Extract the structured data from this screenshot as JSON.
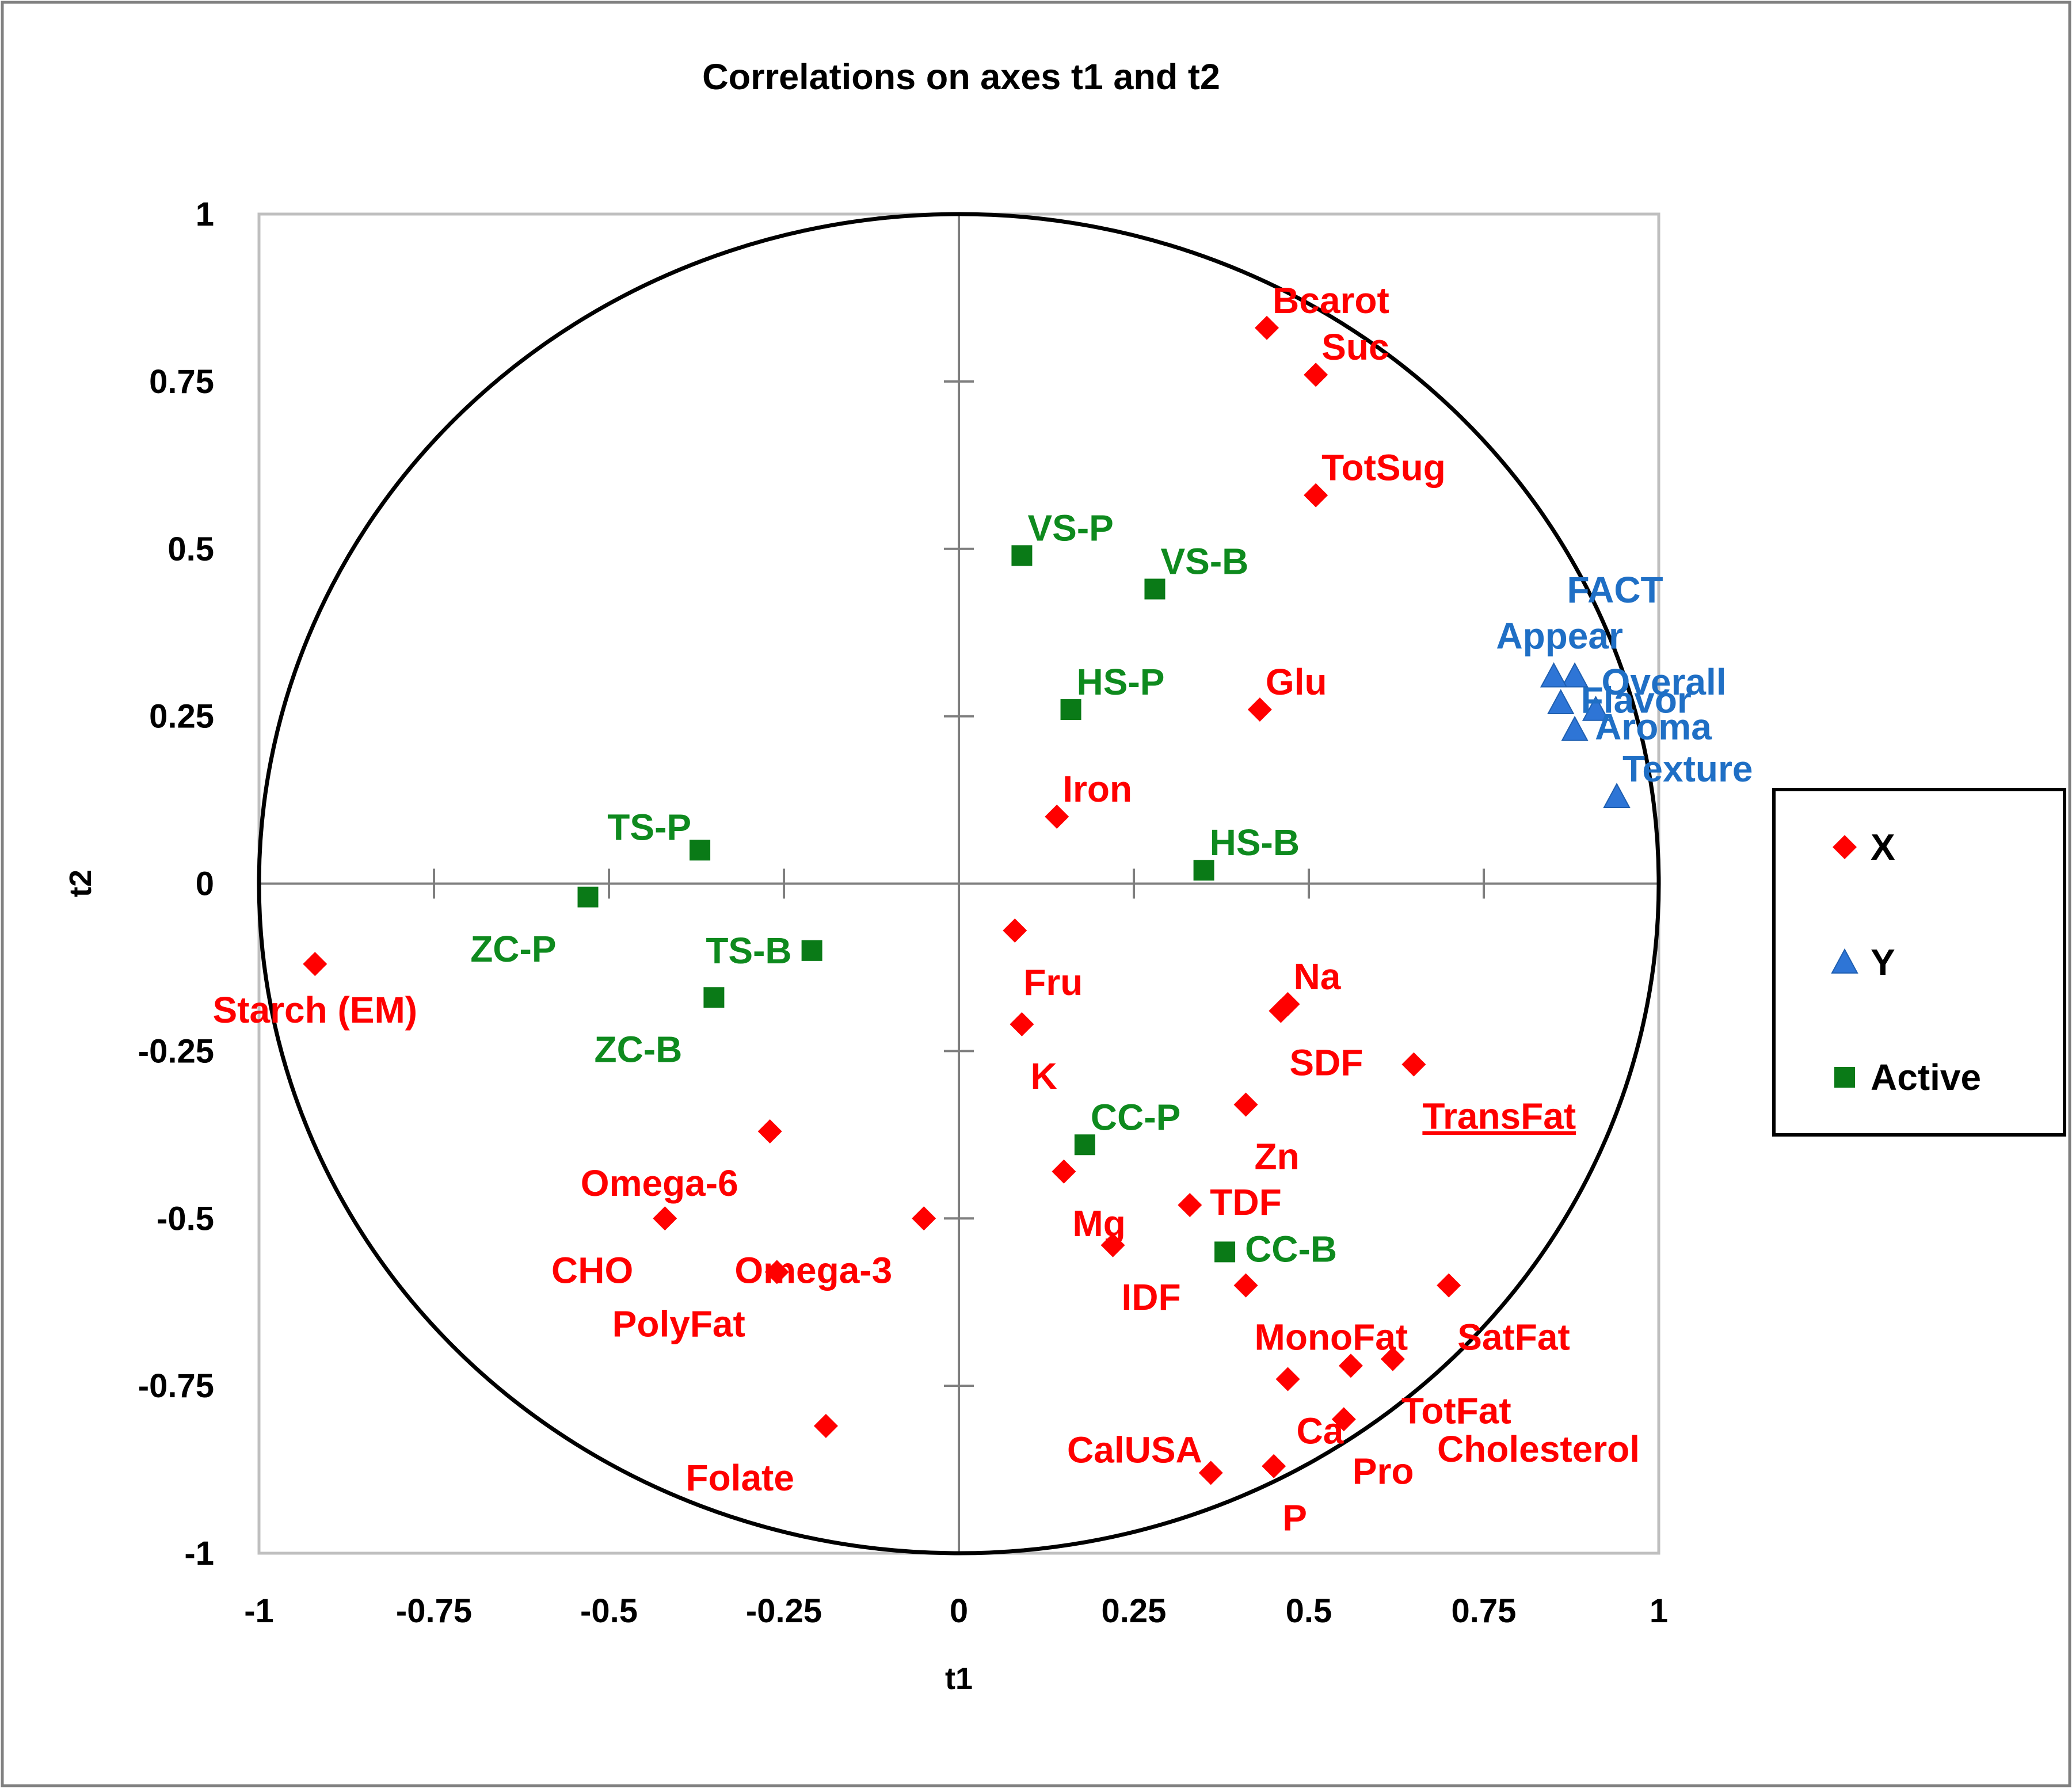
{
  "chart_data": {
    "type": "scatter",
    "title": "Correlations on axes t1 and t2",
    "xlabel": "t1",
    "ylabel": "t2",
    "xlim": [
      -1,
      1
    ],
    "ylim": [
      -1,
      1
    ],
    "xticks": [
      "-1",
      "-0.75",
      "-0.5",
      "-0.25",
      "0",
      "0.25",
      "0.5",
      "0.75",
      "1"
    ],
    "yticks": [
      "1",
      "0.75",
      "0.5",
      "0.25",
      "0",
      "-0.25",
      "-0.5",
      "-0.75",
      "-1"
    ],
    "correlation_circle": true,
    "legend_position": "right",
    "series": [
      {
        "name": "X",
        "marker": "diamond",
        "color": "#ff0000",
        "points": [
          {
            "label": "Bcarot",
            "x": 0.44,
            "y": 0.83,
            "label_pos": "above-right"
          },
          {
            "label": "Suc",
            "x": 0.51,
            "y": 0.76,
            "label_pos": "above-right"
          },
          {
            "label": "TotSug",
            "x": 0.51,
            "y": 0.58,
            "label_pos": "above-right"
          },
          {
            "label": "Glu",
            "x": 0.43,
            "y": 0.26,
            "label_pos": "above-right"
          },
          {
            "label": "Iron",
            "x": 0.14,
            "y": 0.1,
            "label_pos": "above-right"
          },
          {
            "label": "Fru",
            "x": 0.08,
            "y": -0.07,
            "label_pos": "below-right"
          },
          {
            "label": "Starch (EM)",
            "x": -0.92,
            "y": -0.12,
            "label_pos": "below"
          },
          {
            "label": "Na",
            "x": 0.47,
            "y": -0.18,
            "label_pos": "above-right"
          },
          {
            "label": "SDF",
            "x": 0.46,
            "y": -0.19,
            "label_pos": "below-right"
          },
          {
            "label": "K",
            "x": 0.09,
            "y": -0.21,
            "label_pos": "below-right"
          },
          {
            "label": "TransFat",
            "x": 0.65,
            "y": -0.27,
            "label_pos": "below-right",
            "underline": true
          },
          {
            "label": "Zn",
            "x": 0.41,
            "y": -0.33,
            "label_pos": "below-right"
          },
          {
            "label": "Omega-6",
            "x": -0.27,
            "y": -0.37,
            "label_pos": "below-left"
          },
          {
            "label": "Mg",
            "x": 0.15,
            "y": -0.43,
            "label_pos": "below-right"
          },
          {
            "label": "TDF",
            "x": 0.33,
            "y": -0.48,
            "label_pos": "right"
          },
          {
            "label": "CHO",
            "x": -0.42,
            "y": -0.5,
            "label_pos": "below-left"
          },
          {
            "label": "Omega-3",
            "x": -0.05,
            "y": -0.5,
            "label_pos": "below-left"
          },
          {
            "label": "IDF",
            "x": 0.22,
            "y": -0.54,
            "label_pos": "below-right"
          },
          {
            "label": "PolyFat",
            "x": -0.26,
            "y": -0.58,
            "label_pos": "below-left"
          },
          {
            "label": "MonoFat",
            "x": 0.41,
            "y": -0.6,
            "label_pos": "below-right"
          },
          {
            "label": "SatFat",
            "x": 0.7,
            "y": -0.6,
            "label_pos": "below-right"
          },
          {
            "label": "TotFat",
            "x": 0.62,
            "y": -0.71,
            "label_pos": "below-right"
          },
          {
            "label": "Cholesterol",
            "x": 0.56,
            "y": -0.72,
            "label_pos": "far-below-right"
          },
          {
            "label": "Ca",
            "x": 0.47,
            "y": -0.74,
            "label_pos": "below-right"
          },
          {
            "label": "Pro",
            "x": 0.55,
            "y": -0.8,
            "label_pos": "below-right"
          },
          {
            "label": "Folate",
            "x": -0.19,
            "y": -0.81,
            "label_pos": "below-left"
          },
          {
            "label": "P",
            "x": 0.45,
            "y": -0.87,
            "label_pos": "below-right"
          },
          {
            "label": "CalUSA",
            "x": 0.36,
            "y": -0.88,
            "label_pos": "above-left"
          }
        ]
      },
      {
        "name": "Y",
        "marker": "triangle",
        "color": "#2e75d6",
        "label_color": "#1f6fc5",
        "points": [
          {
            "label": "FACT",
            "x": 0.88,
            "y": 0.31,
            "label_pos": "far-above"
          },
          {
            "label": "Appear",
            "x": 0.85,
            "y": 0.31,
            "label_pos": "above"
          },
          {
            "label": "Overall",
            "x": 0.91,
            "y": 0.26,
            "label_pos": "above-right"
          },
          {
            "label": "Flavor",
            "x": 0.86,
            "y": 0.27,
            "label_pos": "right"
          },
          {
            "label": "Aroma",
            "x": 0.88,
            "y": 0.23,
            "label_pos": "right"
          },
          {
            "label": "Texture",
            "x": 0.94,
            "y": 0.13,
            "label_pos": "above-right"
          }
        ]
      },
      {
        "name": "Active",
        "marker": "square",
        "color": "#0a7a17",
        "label_color": "#0e8a1e",
        "points": [
          {
            "label": "VS-P",
            "x": 0.09,
            "y": 0.49,
            "label_pos": "above-right"
          },
          {
            "label": "VS-B",
            "x": 0.28,
            "y": 0.44,
            "label_pos": "above-right"
          },
          {
            "label": "HS-P",
            "x": 0.16,
            "y": 0.26,
            "label_pos": "above-right"
          },
          {
            "label": "TS-P",
            "x": -0.37,
            "y": 0.05,
            "label_pos": "above-left"
          },
          {
            "label": "HS-B",
            "x": 0.35,
            "y": 0.02,
            "label_pos": "above-right"
          },
          {
            "label": "ZC-P",
            "x": -0.53,
            "y": -0.02,
            "label_pos": "below-left"
          },
          {
            "label": "TS-B",
            "x": -0.21,
            "y": -0.1,
            "label_pos": "left"
          },
          {
            "label": "ZC-B",
            "x": -0.35,
            "y": -0.17,
            "label_pos": "below-left"
          },
          {
            "label": "CC-P",
            "x": 0.18,
            "y": -0.39,
            "label_pos": "above-right"
          },
          {
            "label": "CC-B",
            "x": 0.38,
            "y": -0.55,
            "label_pos": "right"
          }
        ]
      }
    ]
  }
}
